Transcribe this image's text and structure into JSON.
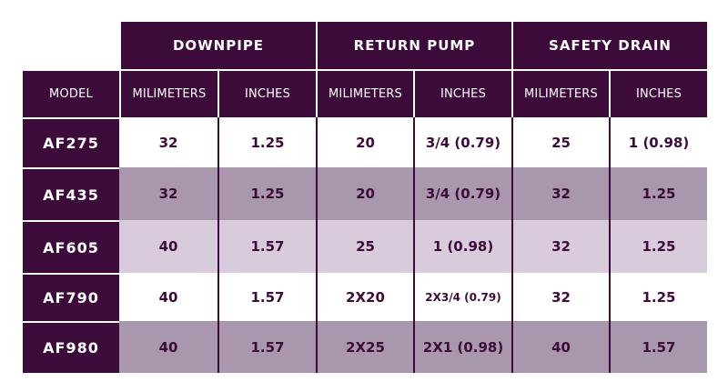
{
  "header": {
    "groups": [
      "DOWNPIPE",
      "RETURN PUMP",
      "SAFETY DRAIN"
    ],
    "model_label": "MODEL",
    "sub_labels": [
      "MILIMETERS",
      "INCHES",
      "MILIMETERS",
      "INCHES",
      "MILIMETERS",
      "INCHES"
    ]
  },
  "rows": [
    {
      "model": "AF275",
      "cells": [
        "32",
        "1.25",
        "20",
        "3/4 (0.79)",
        "25",
        "1 (0.98)"
      ]
    },
    {
      "model": "AF435",
      "cells": [
        "32",
        "1.25",
        "20",
        "3/4 (0.79)",
        "32",
        "1.25"
      ]
    },
    {
      "model": "AF605",
      "cells": [
        "40",
        "1.57",
        "25",
        "1 (0.98)",
        "32",
        "1.25"
      ]
    },
    {
      "model": "AF790",
      "cells": [
        "40",
        "1.57",
        "2X20",
        "2X3/4 (0.79)",
        "32",
        "1.25"
      ]
    },
    {
      "model": "AF980",
      "cells": [
        "40",
        "1.57",
        "2X25",
        "2X1 (0.98)",
        "40",
        "1.57"
      ]
    }
  ],
  "colors": {
    "header": "#3d0b3a",
    "row_white": "#ffffff",
    "row_mid": "#a998ad",
    "row_light": "#d8cbdb"
  }
}
